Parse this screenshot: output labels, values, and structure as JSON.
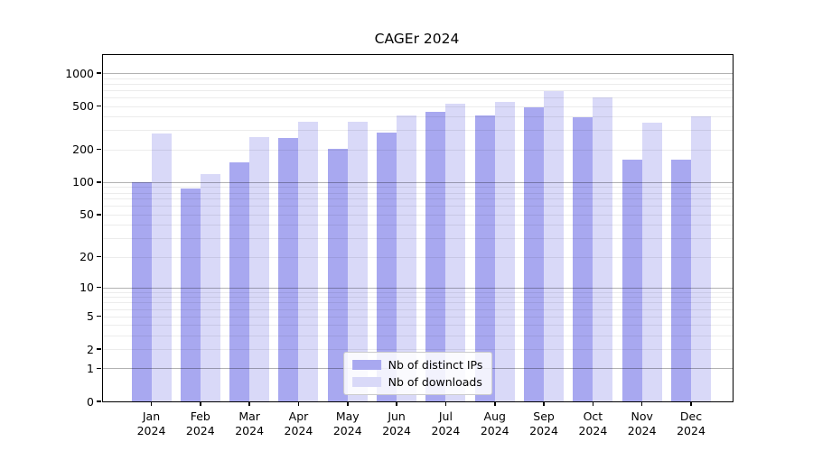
{
  "chart_data": {
    "type": "bar",
    "title": "CAGEr 2024",
    "categories": [
      "Jan",
      "Feb",
      "Mar",
      "Apr",
      "May",
      "Jun",
      "Jul",
      "Aug",
      "Sep",
      "Oct",
      "Nov",
      "Dec"
    ],
    "category_year": "2024",
    "series": [
      {
        "name": "Nb of distinct IPs",
        "color": "#a8a8f0",
        "values": [
          100,
          87,
          152,
          255,
          202,
          286,
          446,
          410,
          490,
          397,
          162,
          162
        ]
      },
      {
        "name": "Nb of downloads",
        "color": "#d9d9f8",
        "values": [
          282,
          119,
          260,
          360,
          356,
          410,
          526,
          550,
          685,
          596,
          352,
          405
        ]
      }
    ],
    "yscale": "log10(value+1)",
    "ylim": [
      0,
      1465
    ],
    "yticks": [
      0,
      1,
      2,
      5,
      10,
      20,
      50,
      100,
      200,
      500,
      1000
    ],
    "grid": {
      "major_at": [
        1,
        10,
        100,
        1000
      ],
      "minor": "2-9 per decade"
    },
    "legend_position": "lower center",
    "frame_color": "#000000",
    "major_grid_color": "#b3b3b3",
    "minor_grid_color": "#ededed"
  }
}
